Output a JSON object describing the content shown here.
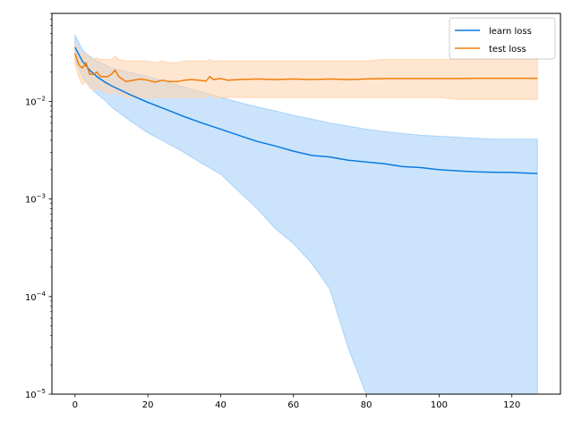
{
  "chart_data": {
    "type": "line",
    "title": "",
    "xlabel": "",
    "ylabel": "",
    "xlim": [
      -6.35,
      133.35
    ],
    "ylim": [
      1e-05,
      0.08
    ],
    "yscale": "log",
    "grid": false,
    "legend_position": "top-right",
    "x_ticks": [
      0,
      20,
      40,
      60,
      80,
      100,
      120
    ],
    "x_tick_labels": [
      "0",
      "20",
      "40",
      "60",
      "80",
      "100",
      "120"
    ],
    "y_ticks": [
      1e-05,
      0.0001,
      0.001,
      0.01
    ],
    "y_tick_labels": [
      {
        "base": "10",
        "exp": "−5"
      },
      {
        "base": "10",
        "exp": "−4"
      },
      {
        "base": "10",
        "exp": "−3"
      },
      {
        "base": "10",
        "exp": "−2"
      }
    ],
    "series": [
      {
        "name": "learn loss",
        "color": "#1f77b4",
        "line_color": "#0a7be0",
        "band_color": "#a8d2fa",
        "x": [
          0,
          2,
          4,
          6,
          8,
          10,
          15,
          20,
          25,
          30,
          35,
          40,
          45,
          50,
          55,
          60,
          65,
          70,
          75,
          80,
          85,
          90,
          95,
          100,
          105,
          110,
          115,
          120,
          127
        ],
        "mean": [
          0.036,
          0.026,
          0.021,
          0.018,
          0.016,
          0.0145,
          0.0118,
          0.0098,
          0.0083,
          0.007,
          0.006,
          0.0052,
          0.0045,
          0.0039,
          0.0035,
          0.0031,
          0.0028,
          0.0027,
          0.0025,
          0.0024,
          0.0023,
          0.00215,
          0.0021,
          0.002,
          0.00195,
          0.0019,
          0.00188,
          0.00187,
          0.00183
        ],
        "upper": [
          0.048,
          0.034,
          0.029,
          0.026,
          0.024,
          0.022,
          0.02,
          0.018,
          0.016,
          0.014,
          0.0125,
          0.011,
          0.0098,
          0.0088,
          0.008,
          0.0072,
          0.0066,
          0.006,
          0.0056,
          0.0052,
          0.0049,
          0.0047,
          0.0045,
          0.0044,
          0.0043,
          0.0042,
          0.0041,
          0.0041,
          0.0041
        ],
        "lower": [
          0.027,
          0.018,
          0.014,
          0.012,
          0.0105,
          0.0088,
          0.0064,
          0.0048,
          0.0038,
          0.003,
          0.0023,
          0.0018,
          0.0012,
          0.0008,
          0.0005,
          0.00035,
          0.00022,
          0.00012,
          3e-05,
          1e-05,
          1e-05,
          1e-05,
          1e-05,
          1e-05,
          1e-05,
          1e-05,
          1e-05,
          1e-05,
          1e-05
        ]
      },
      {
        "name": "test loss",
        "color": "#ff7f0e",
        "line_color": "#f07d0a",
        "band_color": "#ffd6b0",
        "x": [
          0,
          1,
          2,
          3,
          4,
          5,
          6,
          7,
          8,
          9,
          10,
          11,
          12,
          14,
          16,
          18,
          20,
          22,
          24,
          26,
          28,
          30,
          32,
          34,
          36,
          37,
          38,
          40,
          42,
          45,
          50,
          55,
          60,
          65,
          70,
          75,
          80,
          85,
          90,
          95,
          100,
          105,
          110,
          115,
          120,
          127
        ],
        "mean": [
          0.031,
          0.024,
          0.022,
          0.025,
          0.019,
          0.019,
          0.02,
          0.018,
          0.018,
          0.018,
          0.019,
          0.021,
          0.018,
          0.016,
          0.0165,
          0.017,
          0.0165,
          0.0158,
          0.0165,
          0.016,
          0.016,
          0.0165,
          0.0168,
          0.0165,
          0.0162,
          0.018,
          0.0168,
          0.0172,
          0.0165,
          0.0168,
          0.017,
          0.0168,
          0.017,
          0.0168,
          0.017,
          0.0168,
          0.017,
          0.0172,
          0.0172,
          0.0172,
          0.0172,
          0.0172,
          0.0173,
          0.0173,
          0.0173,
          0.0173
        ],
        "upper": [
          0.04,
          0.034,
          0.03,
          0.031,
          0.028,
          0.027,
          0.028,
          0.027,
          0.027,
          0.027,
          0.027,
          0.029,
          0.027,
          0.026,
          0.026,
          0.026,
          0.026,
          0.025,
          0.026,
          0.025,
          0.025,
          0.026,
          0.026,
          0.026,
          0.026,
          0.027,
          0.026,
          0.026,
          0.026,
          0.026,
          0.026,
          0.026,
          0.026,
          0.026,
          0.026,
          0.026,
          0.026,
          0.027,
          0.027,
          0.027,
          0.027,
          0.027,
          0.027,
          0.027,
          0.027,
          0.027
        ],
        "lower": [
          0.024,
          0.018,
          0.015,
          0.016,
          0.014,
          0.013,
          0.014,
          0.013,
          0.013,
          0.012,
          0.012,
          0.013,
          0.012,
          0.011,
          0.011,
          0.011,
          0.011,
          0.011,
          0.011,
          0.011,
          0.011,
          0.011,
          0.011,
          0.011,
          0.011,
          0.012,
          0.011,
          0.011,
          0.011,
          0.011,
          0.011,
          0.011,
          0.011,
          0.011,
          0.011,
          0.011,
          0.011,
          0.011,
          0.011,
          0.011,
          0.011,
          0.0105,
          0.0105,
          0.0105,
          0.0105,
          0.0105
        ]
      }
    ]
  }
}
